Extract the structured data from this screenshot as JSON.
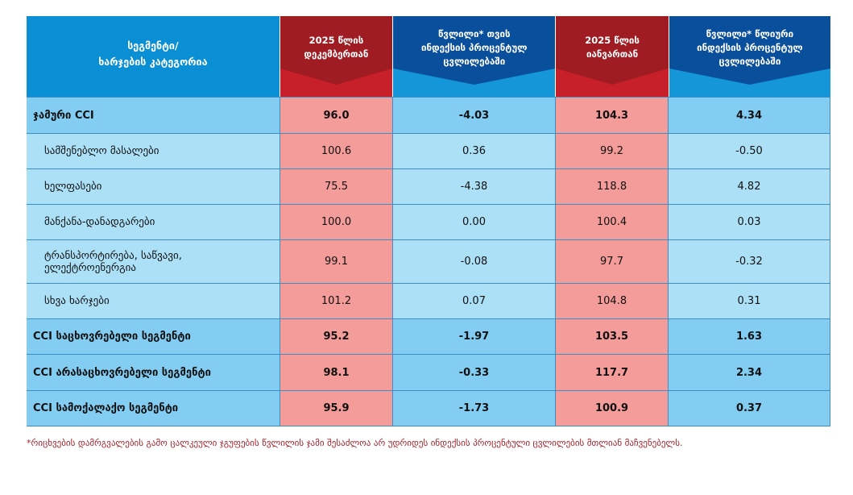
{
  "headers": [
    "სეგმენტი/\nხარჯების კატეგორია",
    "2025 წლის\nდეკემბერთან",
    "წვლილი* თვის\nინდექსის პროცენტულ\nცვლილებაში",
    "2025 წლის\nიანვართან",
    "წვლილი* წლიური\nინდექსის პროცენტულ\nცვლილებაში"
  ],
  "rows": [
    {
      "label": "ჯამური CCI",
      "v": [
        "96.0",
        "-4.03",
        "104.3",
        "4.34"
      ]
    },
    {
      "label": "სამშენებლო მასალები",
      "v": [
        "100.6",
        "0.36",
        "99.2",
        "-0.50"
      ]
    },
    {
      "label": "ხელფასები",
      "v": [
        "75.5",
        "-4.38",
        "118.8",
        "4.82"
      ]
    },
    {
      "label": "მანქანა-დანადგარები",
      "v": [
        "100.0",
        "0.00",
        "100.4",
        "0.03"
      ]
    },
    {
      "label": "ტრანსპორტირება, საწვავი, ელექტროენერგია",
      "v": [
        "99.1",
        "-0.08",
        "97.7",
        "-0.32"
      ]
    },
    {
      "label": "სხვა ხარჯები",
      "v": [
        "101.2",
        "0.07",
        "104.8",
        "0.31"
      ]
    },
    {
      "label": "CCI საცხოვრებელი სეგმენტი",
      "v": [
        "95.2",
        "-1.97",
        "103.5",
        "1.63"
      ]
    },
    {
      "label": "CCI არასაცხოვრებელი სეგმენტი",
      "v": [
        "98.1",
        "-0.33",
        "117.7",
        "2.34"
      ]
    },
    {
      "label": "CCI სამოქალაქო სეგმენტი",
      "v": [
        "95.9",
        "-1.73",
        "100.9",
        "0.37"
      ]
    }
  ],
  "footnote": "*რიცხვების  დამრგვალების გამო ცალკეული ჯგუფების წვლილის ჯამი შესაძლოა არ უდრიდეს ინდექსის პროცენტული ცვლილების მთლიან მაჩვენებელს."
}
